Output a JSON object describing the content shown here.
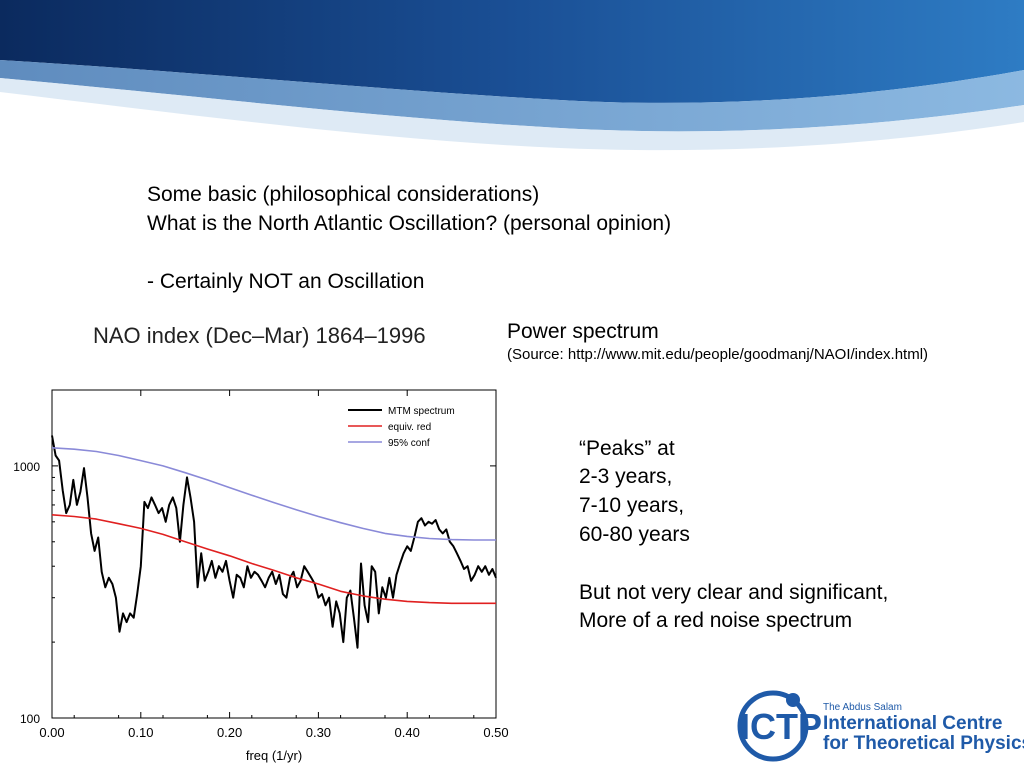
{
  "slide": {
    "intro_lines": [
      "Some basic (philosophical considerations)",
      "What is the North Atlantic Oscillation? (personal opinion)",
      "",
      "- Certainly NOT an Oscillation"
    ],
    "spectrum_heading": "Power spectrum",
    "source": "(Source: http://www.mit.edu/people/goodmanj/NAOI/index.html)",
    "peaks_lines": [
      "“Peaks” at",
      "2-3 years,",
      "7-10 years,",
      "60-80 years",
      "",
      "But not very clear and significant,",
      "More of a red noise spectrum"
    ]
  },
  "logo": {
    "mark": "ICTP",
    "tagline": "The Abdus Salam",
    "line1": "International Centre",
    "line2": "for Theoretical Physics",
    "color": "#1f5aa8"
  },
  "chart_data": {
    "type": "line",
    "title": "NAO index (Dec–Mar) 1864–1996",
    "xlabel": "freq (1/yr)",
    "ylabel": "",
    "xlim": [
      0,
      0.5
    ],
    "ylim": [
      100,
      2000
    ],
    "y_scale": "log",
    "x_ticks": [
      "0.00",
      "0.10",
      "0.20",
      "0.30",
      "0.40",
      "0.50"
    ],
    "y_ticks": [
      "100",
      "1000"
    ],
    "legend_position": "top-right",
    "series": [
      {
        "name": "MTM spectrum",
        "color": "#000000",
        "x": [
          0,
          0.004,
          0.008,
          0.012,
          0.016,
          0.02,
          0.024,
          0.028,
          0.032,
          0.036,
          0.04,
          0.044,
          0.048,
          0.052,
          0.056,
          0.06,
          0.064,
          0.068,
          0.072,
          0.076,
          0.08,
          0.084,
          0.088,
          0.092,
          0.096,
          0.1,
          0.104,
          0.108,
          0.112,
          0.116,
          0.12,
          0.124,
          0.128,
          0.132,
          0.136,
          0.14,
          0.144,
          0.148,
          0.152,
          0.156,
          0.16,
          0.164,
          0.168,
          0.172,
          0.176,
          0.18,
          0.184,
          0.188,
          0.192,
          0.196,
          0.2,
          0.204,
          0.208,
          0.212,
          0.216,
          0.22,
          0.224,
          0.228,
          0.232,
          0.236,
          0.24,
          0.244,
          0.248,
          0.252,
          0.256,
          0.26,
          0.264,
          0.268,
          0.272,
          0.276,
          0.28,
          0.284,
          0.288,
          0.292,
          0.296,
          0.3,
          0.304,
          0.308,
          0.312,
          0.316,
          0.32,
          0.324,
          0.328,
          0.332,
          0.336,
          0.34,
          0.344,
          0.348,
          0.352,
          0.356,
          0.36,
          0.364,
          0.368,
          0.372,
          0.376,
          0.38,
          0.384,
          0.388,
          0.392,
          0.396,
          0.4,
          0.404,
          0.408,
          0.412,
          0.416,
          0.42,
          0.424,
          0.428,
          0.432,
          0.436,
          0.44,
          0.444,
          0.448,
          0.452,
          0.456,
          0.46,
          0.464,
          0.468,
          0.472,
          0.476,
          0.48,
          0.484,
          0.488,
          0.492,
          0.496,
          0.5
        ],
        "y": [
          1320,
          1100,
          1050,
          800,
          650,
          700,
          880,
          700,
          790,
          980,
          750,
          540,
          460,
          520,
          380,
          330,
          360,
          340,
          300,
          220,
          260,
          240,
          260,
          250,
          310,
          400,
          720,
          680,
          750,
          700,
          650,
          680,
          600,
          700,
          750,
          680,
          500,
          700,
          900,
          750,
          600,
          330,
          450,
          350,
          380,
          420,
          360,
          400,
          380,
          420,
          350,
          300,
          370,
          360,
          330,
          400,
          360,
          380,
          370,
          350,
          330,
          360,
          380,
          340,
          370,
          310,
          300,
          360,
          380,
          330,
          350,
          400,
          380,
          360,
          340,
          300,
          310,
          280,
          300,
          230,
          290,
          260,
          200,
          300,
          320,
          250,
          190,
          410,
          280,
          240,
          400,
          380,
          260,
          330,
          300,
          360,
          300,
          370,
          410,
          450,
          480,
          460,
          520,
          600,
          620,
          580,
          600,
          590,
          610,
          560,
          540,
          560,
          500,
          480,
          450,
          420,
          390,
          400,
          350,
          370,
          400,
          380,
          400,
          370,
          390,
          360
        ]
      },
      {
        "name": "equiv. red",
        "color": "#e02020",
        "x": [
          0,
          0.025,
          0.05,
          0.075,
          0.1,
          0.125,
          0.15,
          0.175,
          0.2,
          0.225,
          0.25,
          0.275,
          0.3,
          0.325,
          0.35,
          0.375,
          0.4,
          0.425,
          0.45,
          0.475,
          0.5
        ],
        "y": [
          640,
          630,
          615,
          590,
          565,
          535,
          500,
          468,
          440,
          410,
          385,
          360,
          340,
          318,
          305,
          296,
          290,
          287,
          285,
          285,
          285
        ]
      },
      {
        "name": "95% conf",
        "color": "#8a8ad8",
        "x": [
          0,
          0.025,
          0.05,
          0.075,
          0.1,
          0.125,
          0.15,
          0.175,
          0.2,
          0.225,
          0.25,
          0.275,
          0.3,
          0.325,
          0.35,
          0.375,
          0.4,
          0.425,
          0.45,
          0.475,
          0.5
        ],
        "y": [
          1180,
          1165,
          1140,
          1100,
          1050,
          1000,
          940,
          880,
          820,
          765,
          715,
          670,
          630,
          595,
          565,
          540,
          525,
          515,
          510,
          508,
          508
        ]
      }
    ]
  }
}
